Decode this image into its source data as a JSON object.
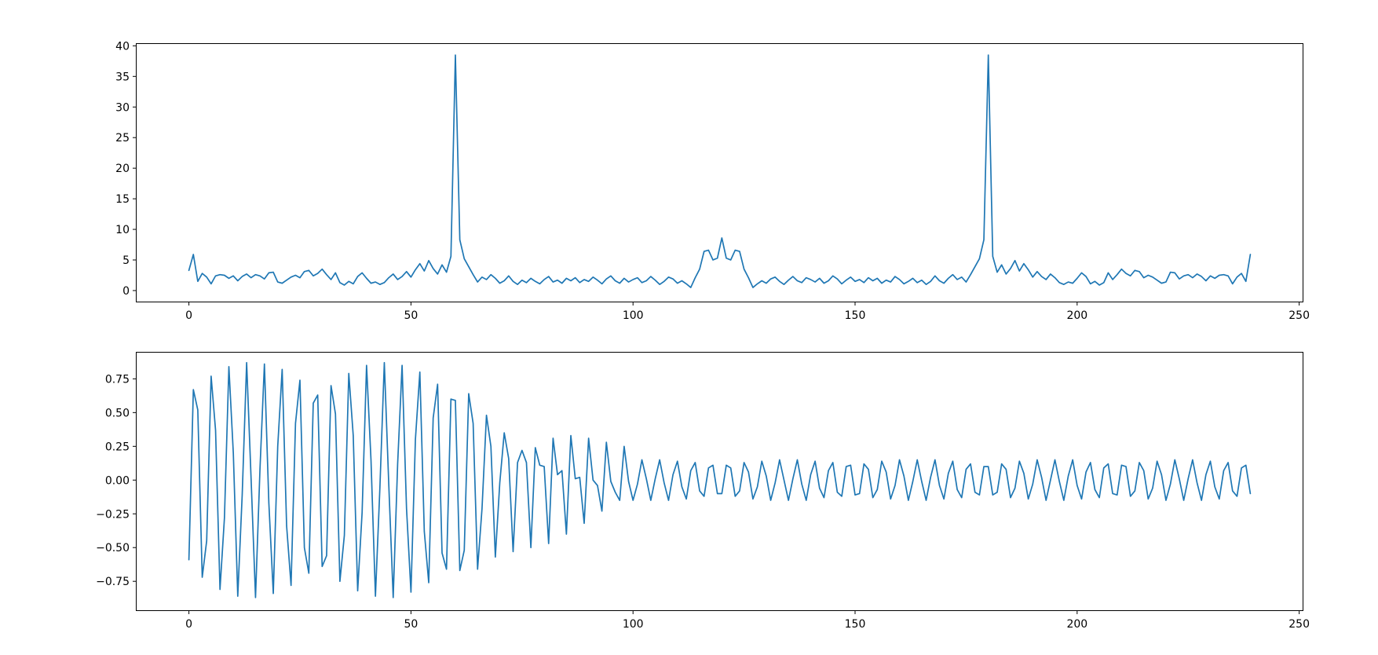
{
  "figure": {
    "background": "#ffffff",
    "accent_line_color": "#1f77b4",
    "spine_color": "#000000",
    "tick_label_color": "#000000"
  },
  "chart_data": [
    {
      "type": "line",
      "name": "spectrum",
      "title": "",
      "grid": false,
      "line_color": "#1f77b4",
      "x_start": 0,
      "x_step": 1,
      "xlim": [
        -11.95,
        250.95
      ],
      "ylim": [
        -1.93,
        40.43
      ],
      "xticks": {
        "values": [
          0,
          50,
          100,
          150,
          200,
          250
        ],
        "labels": [
          "0",
          "50",
          "100",
          "150",
          "200",
          "250"
        ]
      },
      "yticks": {
        "values": [
          0,
          5,
          10,
          15,
          20,
          25,
          30,
          35,
          40
        ],
        "labels": [
          "0",
          "5",
          "10",
          "15",
          "20",
          "25",
          "30",
          "35",
          "40"
        ]
      },
      "values": [
        3.3,
        5.9,
        1.5,
        2.8,
        2.2,
        1.1,
        2.4,
        2.6,
        2.5,
        2.0,
        2.4,
        1.6,
        2.3,
        2.7,
        2.1,
        2.6,
        2.4,
        1.9,
        2.9,
        3.0,
        1.4,
        1.2,
        1.7,
        2.2,
        2.5,
        2.1,
        3.1,
        3.3,
        2.4,
        2.8,
        3.5,
        2.6,
        1.8,
        2.9,
        1.3,
        0.9,
        1.5,
        1.1,
        2.3,
        2.9,
        2.0,
        1.2,
        1.4,
        1.0,
        1.3,
        2.1,
        2.7,
        1.8,
        2.3,
        3.1,
        2.2,
        3.4,
        4.4,
        3.2,
        4.9,
        3.6,
        2.7,
        4.2,
        3.0,
        5.6,
        38.5,
        8.3,
        5.2,
        3.9,
        2.6,
        1.4,
        2.2,
        1.8,
        2.6,
        2.0,
        1.2,
        1.6,
        2.4,
        1.5,
        1.0,
        1.7,
        1.3,
        2.0,
        1.5,
        1.1,
        1.8,
        2.3,
        1.4,
        1.7,
        1.2,
        2.0,
        1.6,
        2.1,
        1.3,
        1.8,
        1.5,
        2.2,
        1.7,
        1.1,
        1.9,
        2.4,
        1.6,
        1.2,
        2.0,
        1.4,
        1.8,
        2.1,
        1.3,
        1.6,
        2.3,
        1.7,
        1.0,
        1.5,
        2.2,
        1.9,
        1.2,
        1.6,
        1.1,
        0.5,
        2.1,
        3.5,
        6.4,
        6.6,
        5.0,
        5.3,
        8.6,
        5.3,
        5.0,
        6.6,
        6.4,
        3.5,
        2.1,
        0.5,
        1.1,
        1.6,
        1.2,
        1.9,
        2.2,
        1.5,
        1.0,
        1.7,
        2.3,
        1.6,
        1.3,
        2.1,
        1.8,
        1.4,
        2.0,
        1.2,
        1.6,
        2.4,
        1.9,
        1.1,
        1.7,
        2.2,
        1.5,
        1.8,
        1.3,
        2.1,
        1.6,
        2.0,
        1.2,
        1.7,
        1.4,
        2.3,
        1.8,
        1.1,
        1.5,
        2.0,
        1.3,
        1.7,
        1.0,
        1.5,
        2.4,
        1.6,
        1.2,
        2.0,
        2.6,
        1.8,
        2.2,
        1.4,
        2.6,
        3.9,
        5.2,
        8.3,
        38.5,
        5.6,
        3.0,
        4.2,
        2.7,
        3.6,
        4.9,
        3.2,
        4.4,
        3.4,
        2.2,
        3.1,
        2.3,
        1.8,
        2.7,
        2.1,
        1.3,
        1.0,
        1.4,
        1.2,
        2.0,
        2.9,
        2.3,
        1.1,
        1.5,
        0.9,
        1.3,
        2.9,
        1.8,
        2.6,
        3.5,
        2.8,
        2.4,
        3.3,
        3.1,
        2.1,
        2.5,
        2.2,
        1.7,
        1.2,
        1.4,
        3.0,
        2.9,
        1.9,
        2.4,
        2.6,
        2.1,
        2.7,
        2.3,
        1.6,
        2.4,
        2.0,
        2.5,
        2.6,
        2.4,
        1.1,
        2.2,
        2.8,
        1.5,
        5.9
      ]
    },
    {
      "type": "line",
      "name": "waveform",
      "title": "",
      "grid": false,
      "line_color": "#1f77b4",
      "x_start": 0,
      "x_step": 1,
      "xlim": [
        -11.95,
        250.95
      ],
      "ylim": [
        -0.97,
        0.95
      ],
      "xticks": {
        "values": [
          0,
          50,
          100,
          150,
          200,
          250
        ],
        "labels": [
          "0",
          "50",
          "100",
          "150",
          "200",
          "250"
        ]
      },
      "yticks": {
        "values": [
          0.75,
          0.5,
          0.25,
          0.0,
          -0.25,
          -0.5,
          -0.75
        ],
        "labels": [
          "0.75",
          "0.50",
          "0.25",
          "0.00",
          "−0.25",
          "−0.50",
          "−0.75"
        ]
      },
      "values": [
        -0.59,
        0.67,
        0.52,
        -0.72,
        -0.45,
        0.77,
        0.37,
        -0.81,
        -0.28,
        0.84,
        0.2,
        -0.86,
        -0.11,
        0.87,
        0.01,
        -0.87,
        0.08,
        0.86,
        -0.17,
        -0.84,
        0.25,
        0.82,
        -0.34,
        -0.78,
        0.42,
        0.74,
        -0.5,
        -0.69,
        0.57,
        0.63,
        -0.64,
        -0.56,
        0.7,
        0.49,
        -0.75,
        -0.41,
        0.79,
        0.33,
        -0.82,
        -0.24,
        0.85,
        0.15,
        -0.86,
        -0.06,
        0.87,
        -0.03,
        -0.87,
        0.12,
        0.85,
        -0.21,
        -0.83,
        0.3,
        0.8,
        -0.38,
        -0.76,
        0.46,
        0.71,
        -0.54,
        -0.66,
        0.6,
        0.59,
        -0.67,
        -0.52,
        0.64,
        0.42,
        -0.66,
        -0.21,
        0.48,
        0.25,
        -0.57,
        -0.02,
        0.35,
        0.16,
        -0.53,
        0.13,
        0.22,
        0.13,
        -0.5,
        0.24,
        0.11,
        0.1,
        -0.47,
        0.31,
        0.04,
        0.07,
        -0.4,
        0.33,
        0.01,
        0.02,
        -0.32,
        0.31,
        0.0,
        -0.04,
        -0.23,
        0.28,
        -0.01,
        -0.09,
        -0.15,
        0.25,
        -0.01,
        -0.15,
        -0.03,
        0.15,
        0.01,
        -0.15,
        0.01,
        0.15,
        -0.02,
        -0.15,
        0.04,
        0.14,
        -0.05,
        -0.14,
        0.07,
        0.13,
        -0.08,
        -0.12,
        0.09,
        0.11,
        -0.1,
        -0.1,
        0.11,
        0.09,
        -0.12,
        -0.08,
        0.13,
        0.06,
        -0.14,
        -0.05,
        0.14,
        0.03,
        -0.15,
        -0.02,
        0.15,
        0.0,
        -0.15,
        0.01,
        0.15,
        -0.03,
        -0.15,
        0.04,
        0.14,
        -0.06,
        -0.13,
        0.07,
        0.13,
        -0.09,
        -0.12,
        0.1,
        0.11,
        -0.11,
        -0.1,
        0.12,
        0.08,
        -0.13,
        -0.07,
        0.14,
        0.06,
        -0.14,
        -0.04,
        0.15,
        0.03,
        -0.15,
        -0.01,
        0.15,
        -0.01,
        -0.15,
        0.02,
        0.15,
        -0.04,
        -0.14,
        0.05,
        0.14,
        -0.07,
        -0.13,
        0.08,
        0.12,
        -0.09,
        -0.11,
        0.1,
        0.1,
        -0.11,
        -0.09,
        0.12,
        0.08,
        -0.13,
        -0.06,
        0.14,
        0.05,
        -0.14,
        -0.03,
        0.15,
        0.02,
        -0.15,
        0.0,
        0.15,
        -0.01,
        -0.15,
        0.03,
        0.15,
        -0.04,
        -0.14,
        0.06,
        0.13,
        -0.07,
        -0.13,
        0.09,
        0.12,
        -0.1,
        -0.11,
        0.11,
        0.1,
        -0.12,
        -0.08,
        0.13,
        0.07,
        -0.14,
        -0.06,
        0.14,
        0.04,
        -0.15,
        -0.03,
        0.15,
        0.01,
        -0.15,
        0.01,
        0.15,
        -0.02,
        -0.15,
        0.04,
        0.14,
        -0.05,
        -0.14,
        0.07,
        0.13,
        -0.08,
        -0.12,
        0.09,
        0.11,
        -0.1
      ]
    }
  ]
}
